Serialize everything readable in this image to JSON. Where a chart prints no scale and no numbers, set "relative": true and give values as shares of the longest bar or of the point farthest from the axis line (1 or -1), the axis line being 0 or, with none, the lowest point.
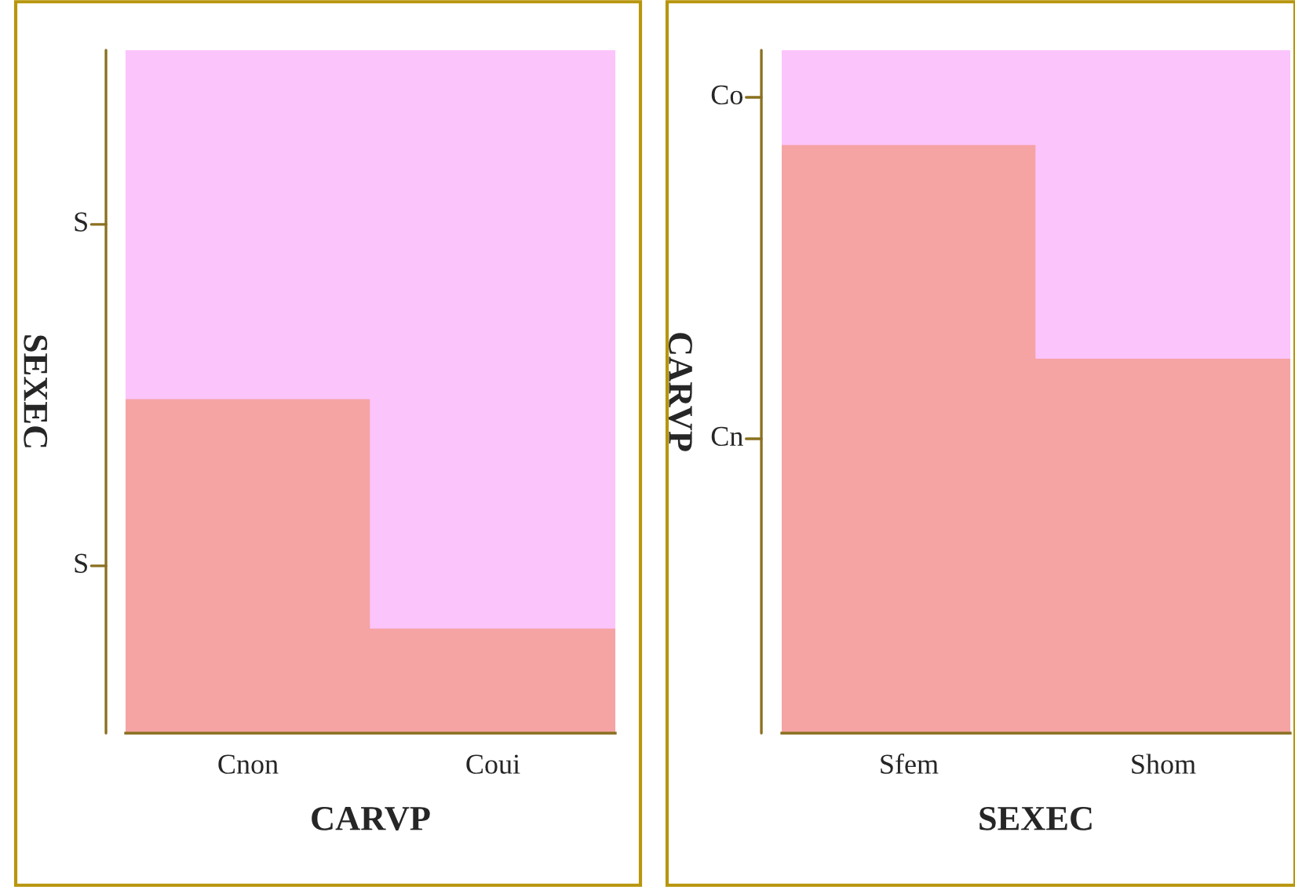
{
  "chart_data": [
    {
      "type": "bar",
      "stacked": true,
      "relative": true,
      "xlabel": "CARVP",
      "ylabel": "SEXEC",
      "categories": [
        "Cnon",
        "Coui"
      ],
      "series": [
        {
          "name": "S",
          "color": "#f5a3a3",
          "values": [
            0.49,
            0.154
          ]
        },
        {
          "name": "S",
          "color": "#fbc4fb",
          "values": [
            0.51,
            0.846
          ]
        }
      ],
      "legend": false
    },
    {
      "type": "bar",
      "stacked": true,
      "relative": true,
      "xlabel": "SEXEC",
      "ylabel": "CARVP",
      "categories": [
        "Sfem",
        "Shom"
      ],
      "series": [
        {
          "name": "Cn",
          "color": "#f5a3a3",
          "values": [
            0.862,
            0.549
          ]
        },
        {
          "name": "Co",
          "color": "#fbc4fb",
          "values": [
            0.138,
            0.451
          ]
        }
      ],
      "legend": false
    }
  ]
}
